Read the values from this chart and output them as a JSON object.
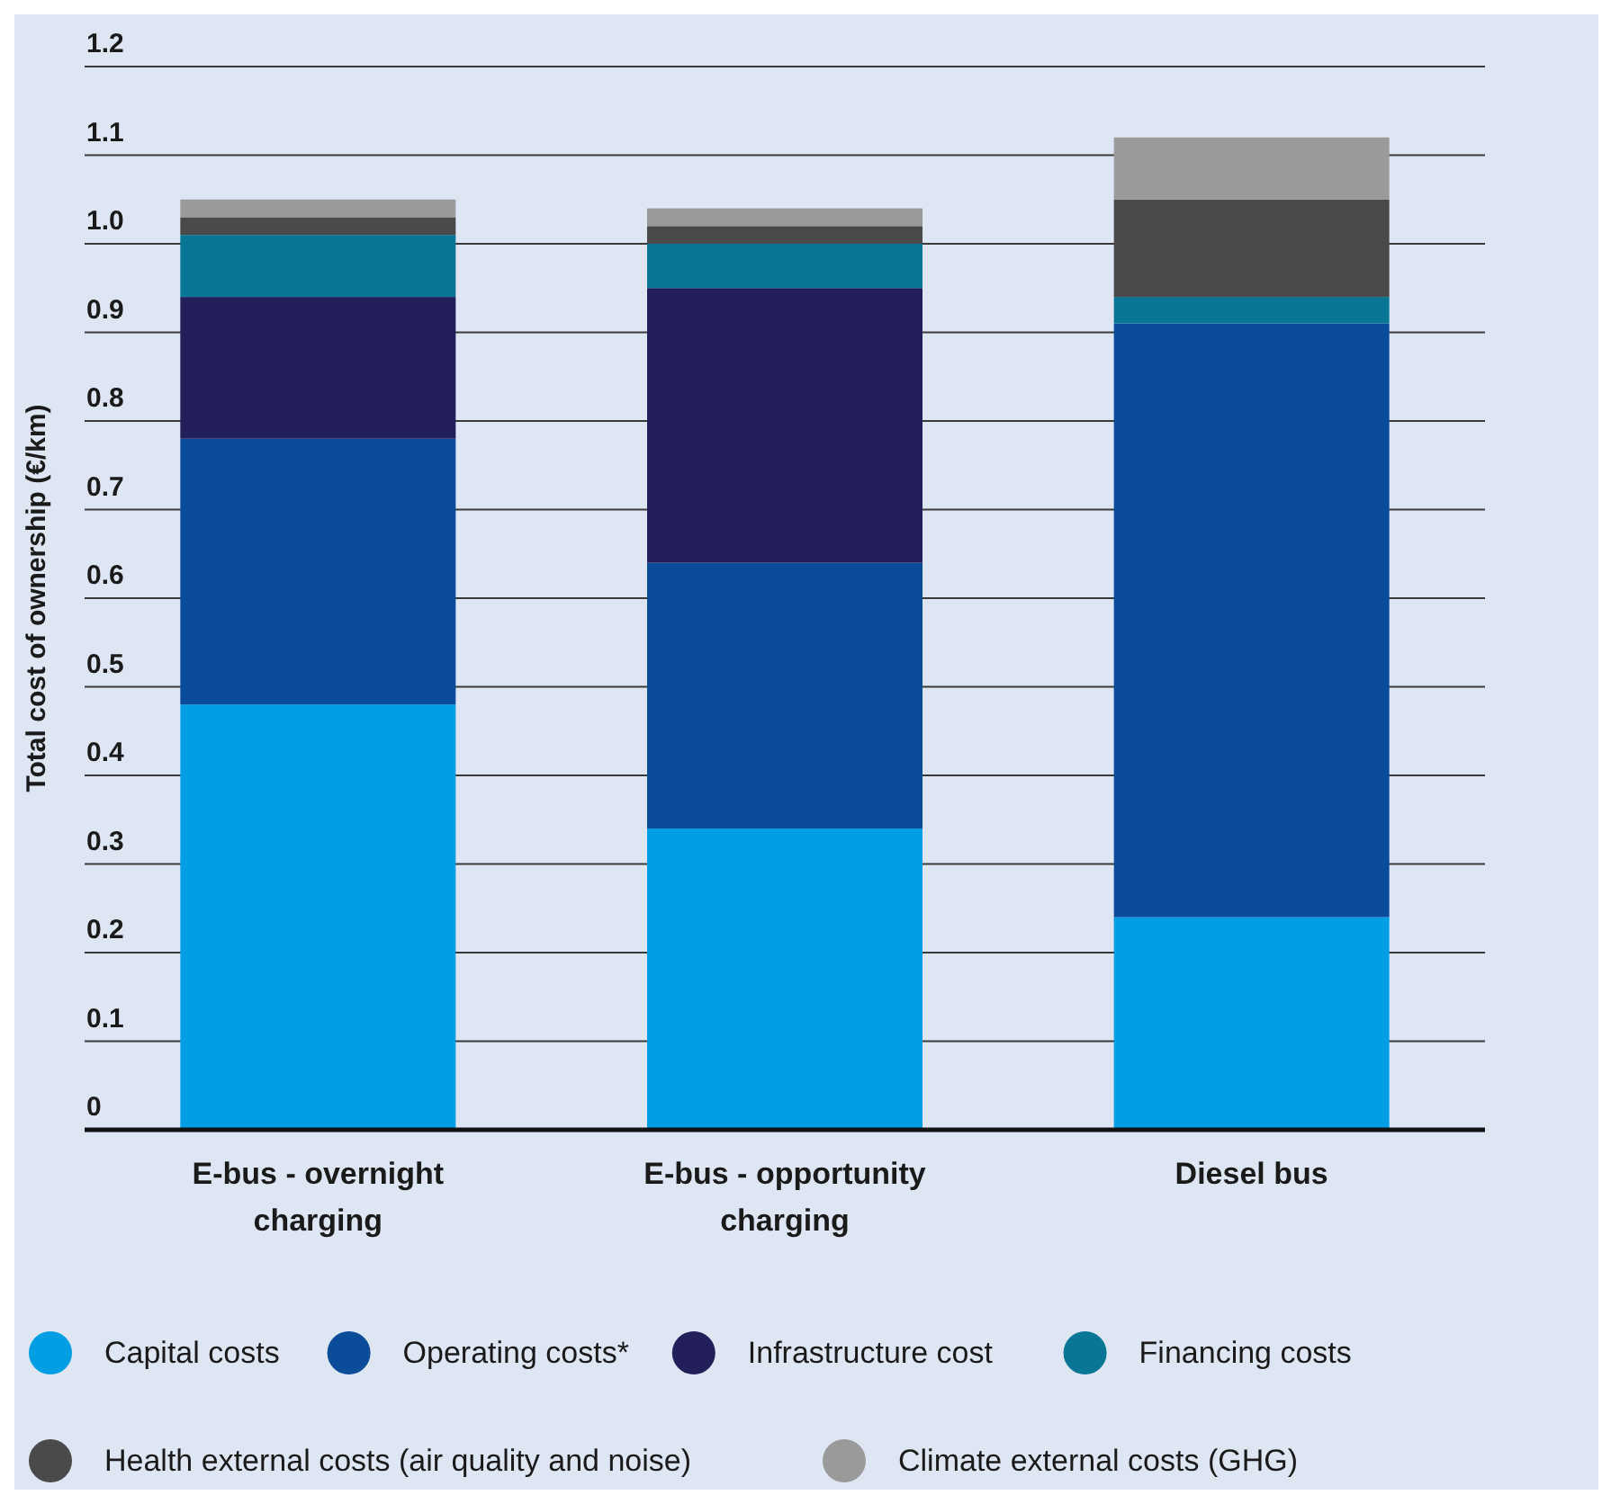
{
  "chart_data": {
    "type": "bar",
    "stacked": true,
    "ylabel": "Total cost of ownership (€/km)",
    "categories": [
      "E-bus - overnight charging",
      "E-bus - opportunity charging",
      "Diesel bus"
    ],
    "series": [
      {
        "name": "Capital costs",
        "color": "#009fe3",
        "values": [
          0.48,
          0.34,
          0.24
        ]
      },
      {
        "name": "Operating costs*",
        "color": "#0a4c99",
        "values": [
          0.3,
          0.3,
          0.67
        ]
      },
      {
        "name": "Infrastructure cost",
        "color": "#221f5a",
        "values": [
          0.16,
          0.31,
          0
        ]
      },
      {
        "name": "Financing costs",
        "color": "#0a7696",
        "values": [
          0.07,
          0.05,
          0.03
        ]
      },
      {
        "name": "Health external costs (air quality and noise)",
        "color": "#4a4a4a",
        "values": [
          0.02,
          0.02,
          0.11
        ]
      },
      {
        "name": "Climate external costs (GHG)",
        "color": "#9a9a9a",
        "values": [
          0.02,
          0.02,
          0.07
        ]
      }
    ],
    "ylim": [
      0,
      1.2
    ],
    "yticks": [
      0,
      0.1,
      0.2,
      0.3,
      0.4,
      0.5,
      0.6,
      0.7,
      0.8,
      0.9,
      {
        "value": 1,
        "label": "1.0"
      },
      1.1,
      1.2
    ],
    "grid": "y",
    "legend": "bottom",
    "marker": "circle"
  }
}
